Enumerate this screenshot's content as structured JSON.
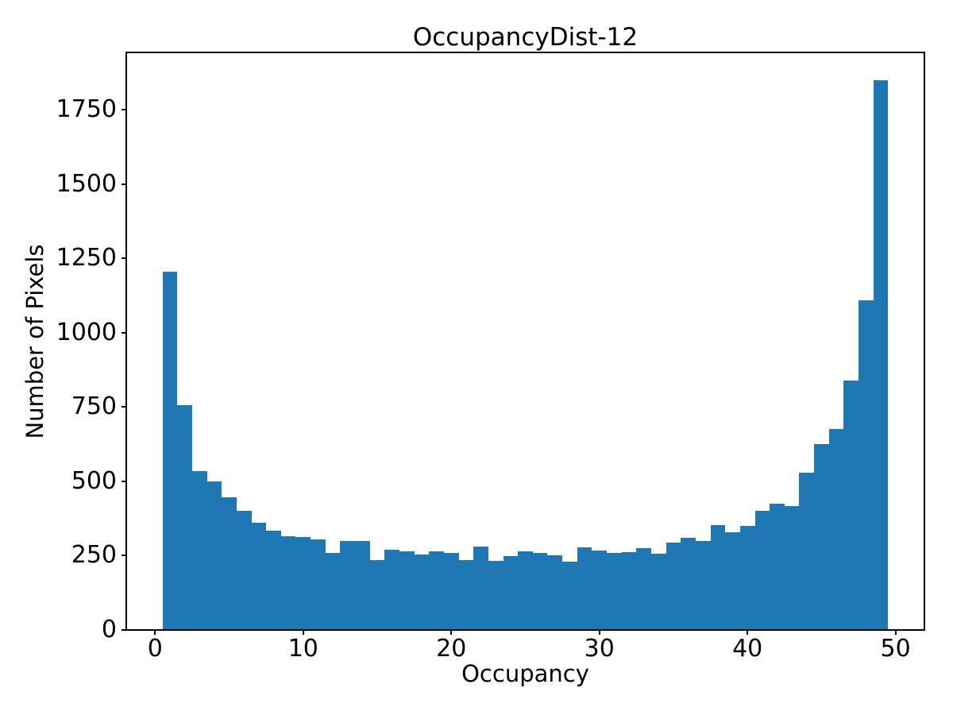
{
  "chart_data": {
    "type": "bar",
    "subtype": "histogram",
    "title": "OccupancyDist-12",
    "xlabel": "Occupancy",
    "ylabel": "Number of Pixels",
    "bar_color": "#1f77b4",
    "text_color": "#000000",
    "grid": false,
    "legend_position": "none",
    "bin_start": 0.5,
    "bin_width": 1.0,
    "bin_centers": [
      1,
      2,
      3,
      4,
      5,
      6,
      7,
      8,
      9,
      10,
      11,
      12,
      13,
      14,
      15,
      16,
      17,
      18,
      19,
      20,
      21,
      22,
      23,
      24,
      25,
      26,
      27,
      28,
      29,
      30,
      31,
      32,
      33,
      34,
      35,
      36,
      37,
      38,
      39,
      40,
      41,
      42,
      43,
      44,
      45,
      46,
      47,
      48,
      49
    ],
    "values": [
      1205,
      755,
      535,
      500,
      445,
      400,
      360,
      335,
      315,
      312,
      305,
      260,
      300,
      300,
      235,
      270,
      265,
      255,
      265,
      260,
      235,
      280,
      232,
      248,
      265,
      258,
      252,
      230,
      277,
      268,
      260,
      263,
      274,
      256,
      294,
      310,
      298,
      352,
      328,
      350,
      400,
      425,
      418,
      530,
      625,
      675,
      840,
      1110,
      1850
    ],
    "xticks": [
      0,
      10,
      20,
      30,
      40,
      50
    ],
    "yticks": [
      0,
      250,
      500,
      750,
      1000,
      1250,
      1500,
      1750
    ],
    "xlim": [
      -1.95,
      51.95
    ],
    "ylim": [
      0,
      1942.5
    ]
  }
}
